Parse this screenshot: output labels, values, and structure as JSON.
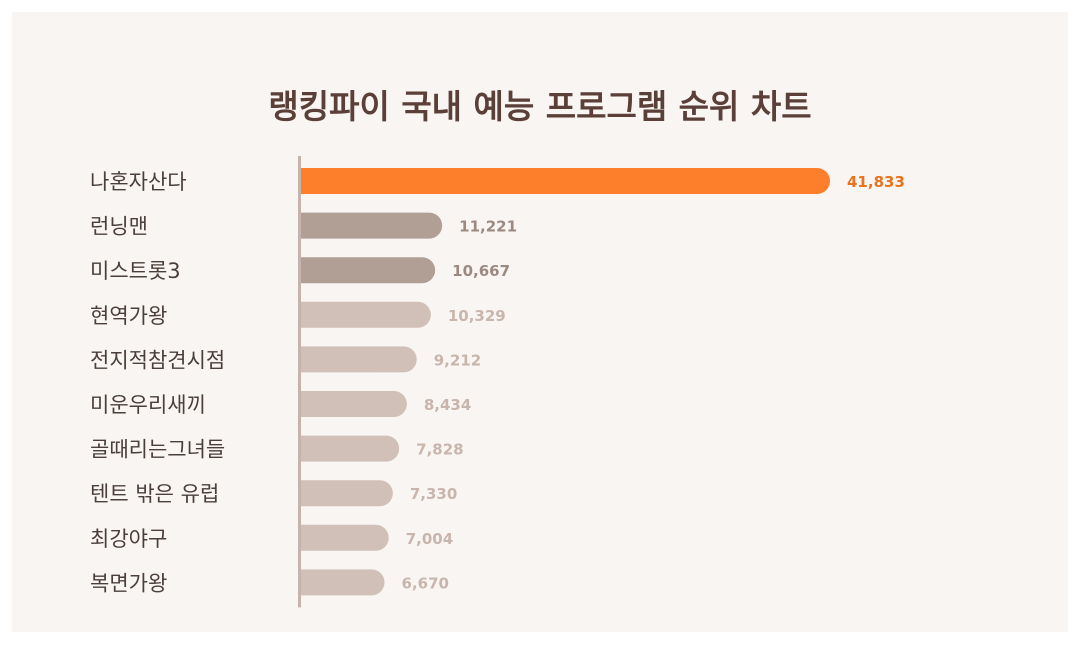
{
  "chart_data": {
    "type": "bar",
    "orientation": "horizontal",
    "title": "랭킹파이 국내 예능 프로그램 순위 차트",
    "categories": [
      "나혼자산다",
      "런닝맨",
      "미스트롯3",
      "현역가왕",
      "전지적참견시점",
      "미운우리새끼",
      "골때리는그녀들",
      "텐트 밖은 유럽",
      "최강야구",
      "복면가왕"
    ],
    "values": [
      41833,
      11221,
      10667,
      10329,
      9212,
      8434,
      7828,
      7330,
      7004,
      6670
    ],
    "value_labels": [
      "41,833",
      "11,221",
      "10,667",
      "10,329",
      "9,212",
      "8,434",
      "7,828",
      "7,330",
      "7,004",
      "6,670"
    ],
    "colors": {
      "highlight": "#fd7e2b",
      "second_tier": "#b19e95",
      "other": "#d1c0b7",
      "highlight_label": "#e8721d",
      "second_label": "#9c8a82",
      "other_label": "#c8b6ad",
      "category_text": "#4a3f3b",
      "axis": "#c5b4ab",
      "title_text": "#5a4038",
      "background": "#f9f5f3"
    },
    "grid": false,
    "legend": "none"
  }
}
